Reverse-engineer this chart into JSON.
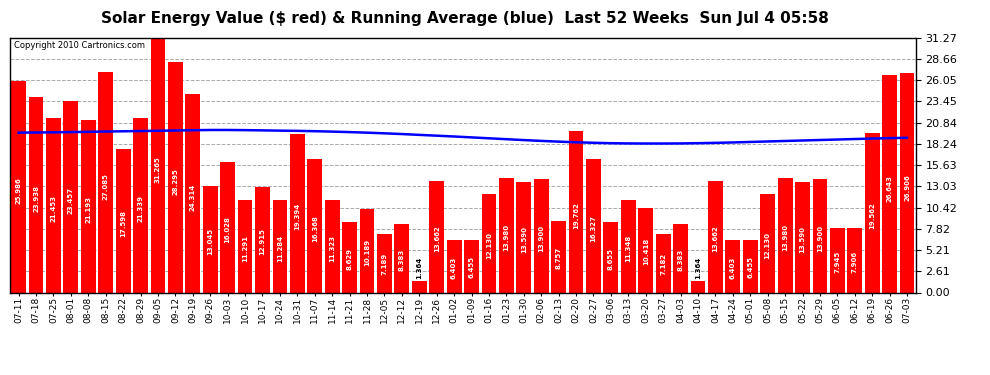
{
  "title": "Solar Energy Value ($ red) & Running Average (blue)  Last 52 Weeks  Sun Jul 4 05:58",
  "copyright": "Copyright 2010 Cartronics.com",
  "bar_color": "#ff0000",
  "avg_line_color": "#0000ff",
  "bg_color": "#ffffff",
  "grid_color": "#aaaaaa",
  "title_fontsize": 11,
  "ylim": [
    0.0,
    31.27
  ],
  "yticks": [
    0.0,
    2.61,
    5.21,
    7.82,
    10.42,
    13.03,
    15.63,
    18.24,
    20.84,
    23.45,
    26.05,
    28.66,
    31.27
  ],
  "categories": [
    "07-11",
    "07-18",
    "07-25",
    "08-01",
    "08-08",
    "08-15",
    "08-22",
    "08-29",
    "09-05",
    "09-12",
    "09-19",
    "09-26",
    "10-03",
    "10-10",
    "10-17",
    "10-24",
    "10-31",
    "11-07",
    "11-14",
    "11-21",
    "11-28",
    "12-05",
    "12-12",
    "12-19",
    "12-26",
    "01-02",
    "01-09",
    "01-16",
    "01-23",
    "01-30",
    "02-06",
    "02-13",
    "02-20",
    "02-27",
    "03-06",
    "03-13",
    "03-20",
    "03-27",
    "04-03",
    "04-10",
    "04-17",
    "04-24",
    "05-01",
    "05-08",
    "05-15",
    "05-22",
    "05-29",
    "06-05",
    "06-12",
    "06-19",
    "06-26",
    "07-03"
  ],
  "values": [
    25.986,
    23.938,
    21.453,
    23.457,
    21.193,
    27.085,
    17.598,
    21.339,
    31.265,
    28.295,
    24.314,
    13.045,
    16.028,
    11.291,
    12.915,
    11.284,
    19.394,
    16.368,
    11.323,
    8.629,
    10.189,
    7.189,
    8.383,
    1.364,
    13.662,
    6.403,
    6.455,
    12.13,
    13.98,
    13.59,
    13.9,
    8.757,
    19.762,
    16.327,
    8.655,
    11.348,
    10.418,
    7.182,
    8.383,
    1.364,
    13.662,
    6.403,
    6.455,
    12.13,
    13.98,
    13.59,
    13.9,
    7.945,
    7.906,
    19.562,
    26.643,
    26.906
  ],
  "running_avg": [
    19.6,
    19.62,
    19.64,
    19.67,
    19.7,
    19.74,
    19.77,
    19.8,
    19.83,
    19.87,
    19.9,
    19.93,
    19.93,
    19.91,
    19.88,
    19.85,
    19.82,
    19.78,
    19.73,
    19.67,
    19.6,
    19.52,
    19.43,
    19.33,
    19.23,
    19.13,
    19.02,
    18.91,
    18.8,
    18.69,
    18.59,
    18.5,
    18.42,
    18.36,
    18.31,
    18.28,
    18.27,
    18.27,
    18.28,
    18.31,
    18.35,
    18.4,
    18.46,
    18.52,
    18.58,
    18.64,
    18.7,
    18.76,
    18.82,
    18.88,
    18.93,
    18.97
  ]
}
